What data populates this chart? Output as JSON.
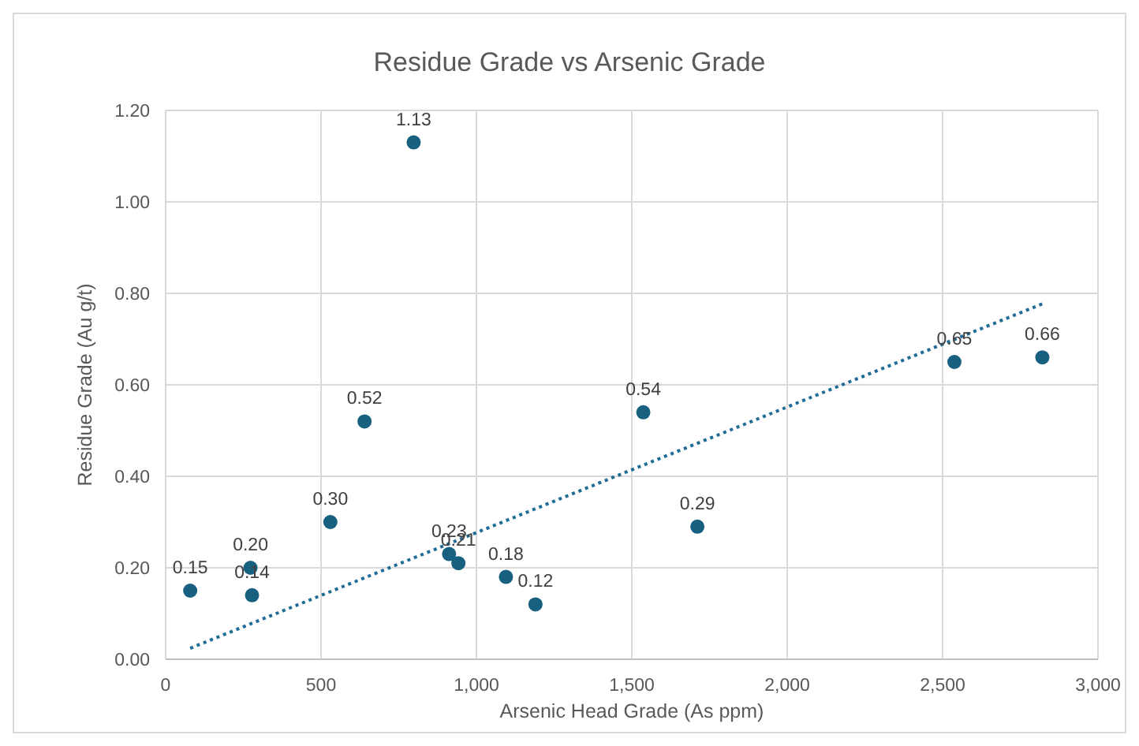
{
  "chart_data": {
    "type": "scatter",
    "title": "Residue Grade vs Arsenic Grade",
    "xlabel": "Arsenic Head Grade (As ppm)",
    "ylabel": "Residue Grade (Au g/t)",
    "xlim": [
      0,
      3000
    ],
    "xticks": [
      0,
      500,
      {
        "value": 1000,
        "label": "1,000"
      },
      {
        "value": 1500,
        "label": "1,500"
      },
      {
        "value": 2000,
        "label": "2,000"
      },
      {
        "value": 2500,
        "label": "2,500"
      },
      {
        "value": 3000,
        "label": "3,000"
      }
    ],
    "ylim": [
      0,
      1.2
    ],
    "yticks": [
      {
        "value": 0,
        "label": "0.00"
      },
      {
        "value": 0.2,
        "label": "0.20"
      },
      {
        "value": 0.4,
        "label": "0.40"
      },
      {
        "value": 0.6,
        "label": "0.60"
      },
      {
        "value": 0.8,
        "label": "0.80"
      },
      {
        "value": 1,
        "label": "1.00"
      },
      {
        "value": 1.2,
        "label": "1.20"
      }
    ],
    "grid": true,
    "series": [
      {
        "color": "#17607f",
        "marker": "circle",
        "x": [
          79,
          273,
          278,
          530,
          640,
          798,
          912,
          942,
          1095,
          1190,
          1537,
          1711,
          2538,
          2821
        ],
        "values": [
          0.15,
          0.2,
          0.14,
          0.3,
          0.52,
          1.13,
          0.23,
          0.21,
          0.18,
          0.12,
          0.54,
          0.29,
          0.65,
          0.66
        ],
        "value_labels": [
          "0.15",
          "0.20",
          "0.14",
          "0.30",
          "0.52",
          "1.13",
          "0.23",
          "0.21",
          "0.18",
          "0.12",
          "0.54",
          "0.29",
          "0.65",
          "0.66"
        ]
      },
      {
        "type": "line",
        "color": "#1f6d96",
        "line_style": "dotted",
        "marker": "none",
        "x": [
          79,
          2821
        ],
        "values": [
          0.024,
          0.777
        ]
      }
    ]
  }
}
